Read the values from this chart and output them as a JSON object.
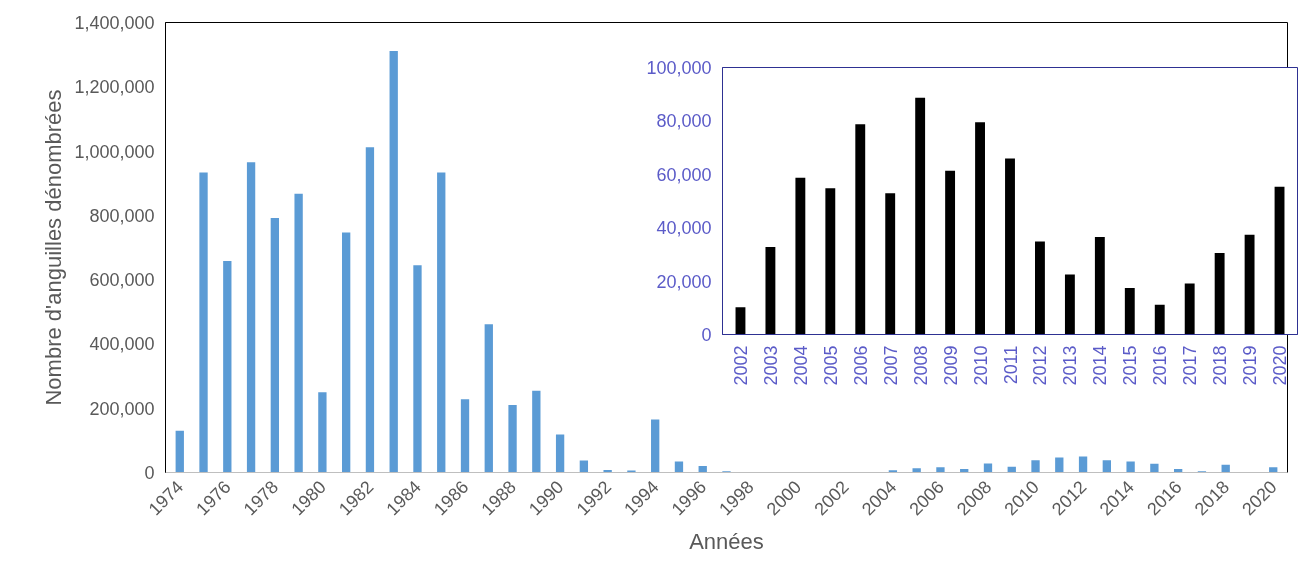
{
  "chart_data": [
    {
      "type": "bar",
      "xlabel": "Années",
      "ylabel": "Nombre d'anguilles dénombrées",
      "categories": [
        "1974",
        null,
        "1976",
        null,
        "1978",
        null,
        "1980",
        null,
        "1982",
        null,
        "1984",
        null,
        "1986",
        null,
        "1988",
        null,
        "1990",
        null,
        "1992",
        null,
        "1994",
        null,
        "1996",
        null,
        "1998",
        null,
        "2000",
        null,
        "2002",
        null,
        "2004",
        null,
        "2006",
        null,
        "2008",
        null,
        "2010",
        null,
        "2012",
        null,
        "2014",
        null,
        "2016",
        null,
        "2018",
        null,
        "2020"
      ],
      "values": [
        130000,
        933000,
        658000,
        965000,
        792000,
        867000,
        250000,
        747000,
        1012000,
        1311000,
        645000,
        933000,
        228000,
        461000,
        210000,
        254000,
        118000,
        37000,
        8000,
        6000,
        165000,
        34000,
        20000,
        4000,
        0,
        0,
        0,
        0,
        0,
        0,
        7000,
        13000,
        16000,
        11000,
        28000,
        18000,
        38000,
        47000,
        50000,
        38000,
        34000,
        27000,
        11000,
        4000,
        24000,
        0,
        16000
      ],
      "color": "#5b9bd5",
      "ylim": [
        0,
        1400000
      ],
      "yticks": [
        0,
        {
          "value": 200000,
          "label": "200,000"
        },
        {
          "value": 400000,
          "label": "400,000"
        },
        {
          "value": 600000,
          "label": "600,000"
        },
        {
          "value": 800000,
          "label": "800,000"
        },
        {
          "value": 1000000,
          "label": "1,000,000"
        },
        {
          "value": 1200000,
          "label": "1,200,000"
        },
        {
          "value": 1400000,
          "label": "1,400,000"
        }
      ]
    },
    {
      "type": "bar",
      "categories": [
        "2002",
        "2003",
        "2004",
        "2005",
        "2006",
        "2007",
        "2008",
        "2009",
        "2010",
        "2011",
        "2012",
        "2013",
        "2014",
        "2015",
        "2016",
        "2017",
        "2018",
        "2019",
        "2020"
      ],
      "values": [
        10200,
        32800,
        58700,
        54800,
        78700,
        52900,
        88700,
        61300,
        79500,
        65900,
        34800,
        22500,
        36500,
        17400,
        11100,
        19100,
        30500,
        37400,
        55300
      ],
      "color": "#000000",
      "ylim": [
        0,
        100000
      ],
      "yticks": [
        0,
        {
          "value": 20000,
          "label": "20,000"
        },
        {
          "value": 40000,
          "label": "40,000"
        },
        {
          "value": 60000,
          "label": "60,000"
        },
        {
          "value": 80000,
          "label": "80,000"
        },
        {
          "value": 100000,
          "label": "100,000"
        }
      ]
    }
  ]
}
